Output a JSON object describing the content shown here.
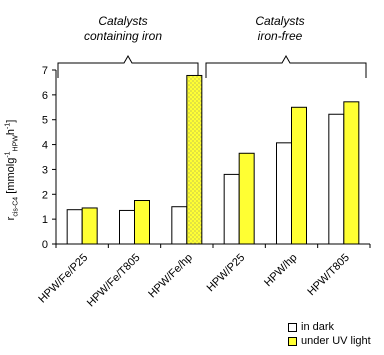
{
  "colors": {
    "dark": "#ffffff",
    "uv": "#ffff33",
    "stroke": "#000000"
  },
  "groups": {
    "iron": "Catalysts\ncontaining iron",
    "free": "Catalysts\niron-free"
  },
  "ylabel": {
    "main": "r",
    "sub1": "cis-C4",
    "bracket_open": "[mmolg",
    "sup1": "-1",
    "sub2": "HPW",
    "mid": "h",
    "sup2": "-1",
    "close": "]"
  },
  "legend": {
    "dark": "in dark",
    "uv": "under UV light"
  },
  "chart_data": {
    "type": "bar",
    "categories": [
      "HPW/Fe/P25",
      "HPW/Fe/T805",
      "HPW/Fe/hp",
      "HPW/P25",
      "HPW/hp",
      "HPW/T805"
    ],
    "series": [
      {
        "name": "in dark",
        "values": [
          1.38,
          1.35,
          1.5,
          2.8,
          4.07,
          5.22
        ]
      },
      {
        "name": "under UV light",
        "values": [
          1.45,
          1.75,
          6.78,
          3.65,
          5.5,
          5.72
        ]
      }
    ],
    "ylim": [
      0,
      7
    ],
    "yticks": [
      0,
      1,
      2,
      3,
      4,
      5,
      6,
      7
    ],
    "grid": false,
    "legend_position": "bottom-right"
  }
}
